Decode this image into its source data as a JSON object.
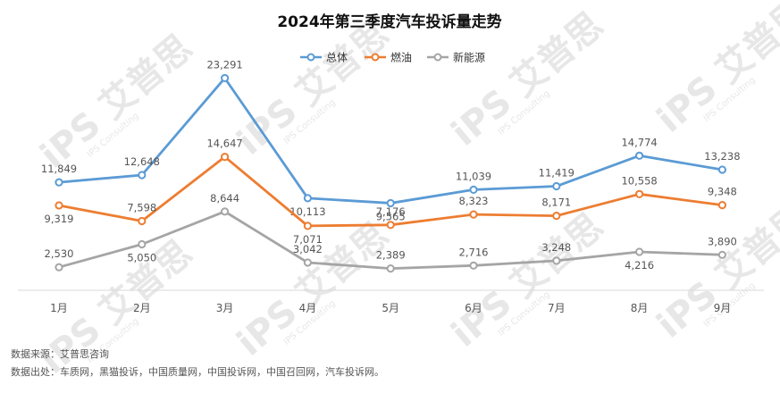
{
  "chart_data": {
    "type": "line",
    "title": "2024年第三季度汽车投诉量走势",
    "categories": [
      "1月",
      "2月",
      "3月",
      "4月",
      "5月",
      "6月",
      "7月",
      "8月",
      "9月"
    ],
    "series": [
      {
        "name": "总体",
        "color": "#5b9bd5",
        "values": [
          11849,
          12648,
          23291,
          10113,
          9565,
          11039,
          11419,
          14774,
          13238
        ],
        "labels": [
          "11,849",
          "12,648",
          "23,291",
          "10,113",
          "9,565",
          "11,039",
          "11,419",
          "14,774",
          "13,238"
        ]
      },
      {
        "name": "燃油",
        "color": "#ed7d31",
        "values": [
          9319,
          7598,
          14647,
          7071,
          7176,
          8323,
          8171,
          10558,
          9348
        ],
        "labels": [
          "9,319",
          "7,598",
          "14,647",
          "7,071",
          "7,176",
          "8,323",
          "8,171",
          "10,558",
          "9,348"
        ]
      },
      {
        "name": "新能源",
        "color": "#a5a5a5",
        "values": [
          2530,
          5050,
          8644,
          3042,
          2389,
          2716,
          3248,
          4216,
          3890
        ],
        "labels": [
          "2,530",
          "5,050",
          "8,644",
          "3,042",
          "2,389",
          "2,716",
          "3,248",
          "4,216",
          "3,890"
        ]
      }
    ],
    "legend_position": "top-center",
    "grid": false,
    "ylim": [
      0,
      25000
    ]
  },
  "footer": {
    "source_line": "数据来源：艾普思咨询",
    "origin_line": "数据出处：车质网，黑猫投诉，中国质量网，中国投诉网，中国召回网，汽车投诉网。"
  },
  "watermark": {
    "brand": "iPS 艾普思",
    "sub": "IPS Consulting"
  }
}
